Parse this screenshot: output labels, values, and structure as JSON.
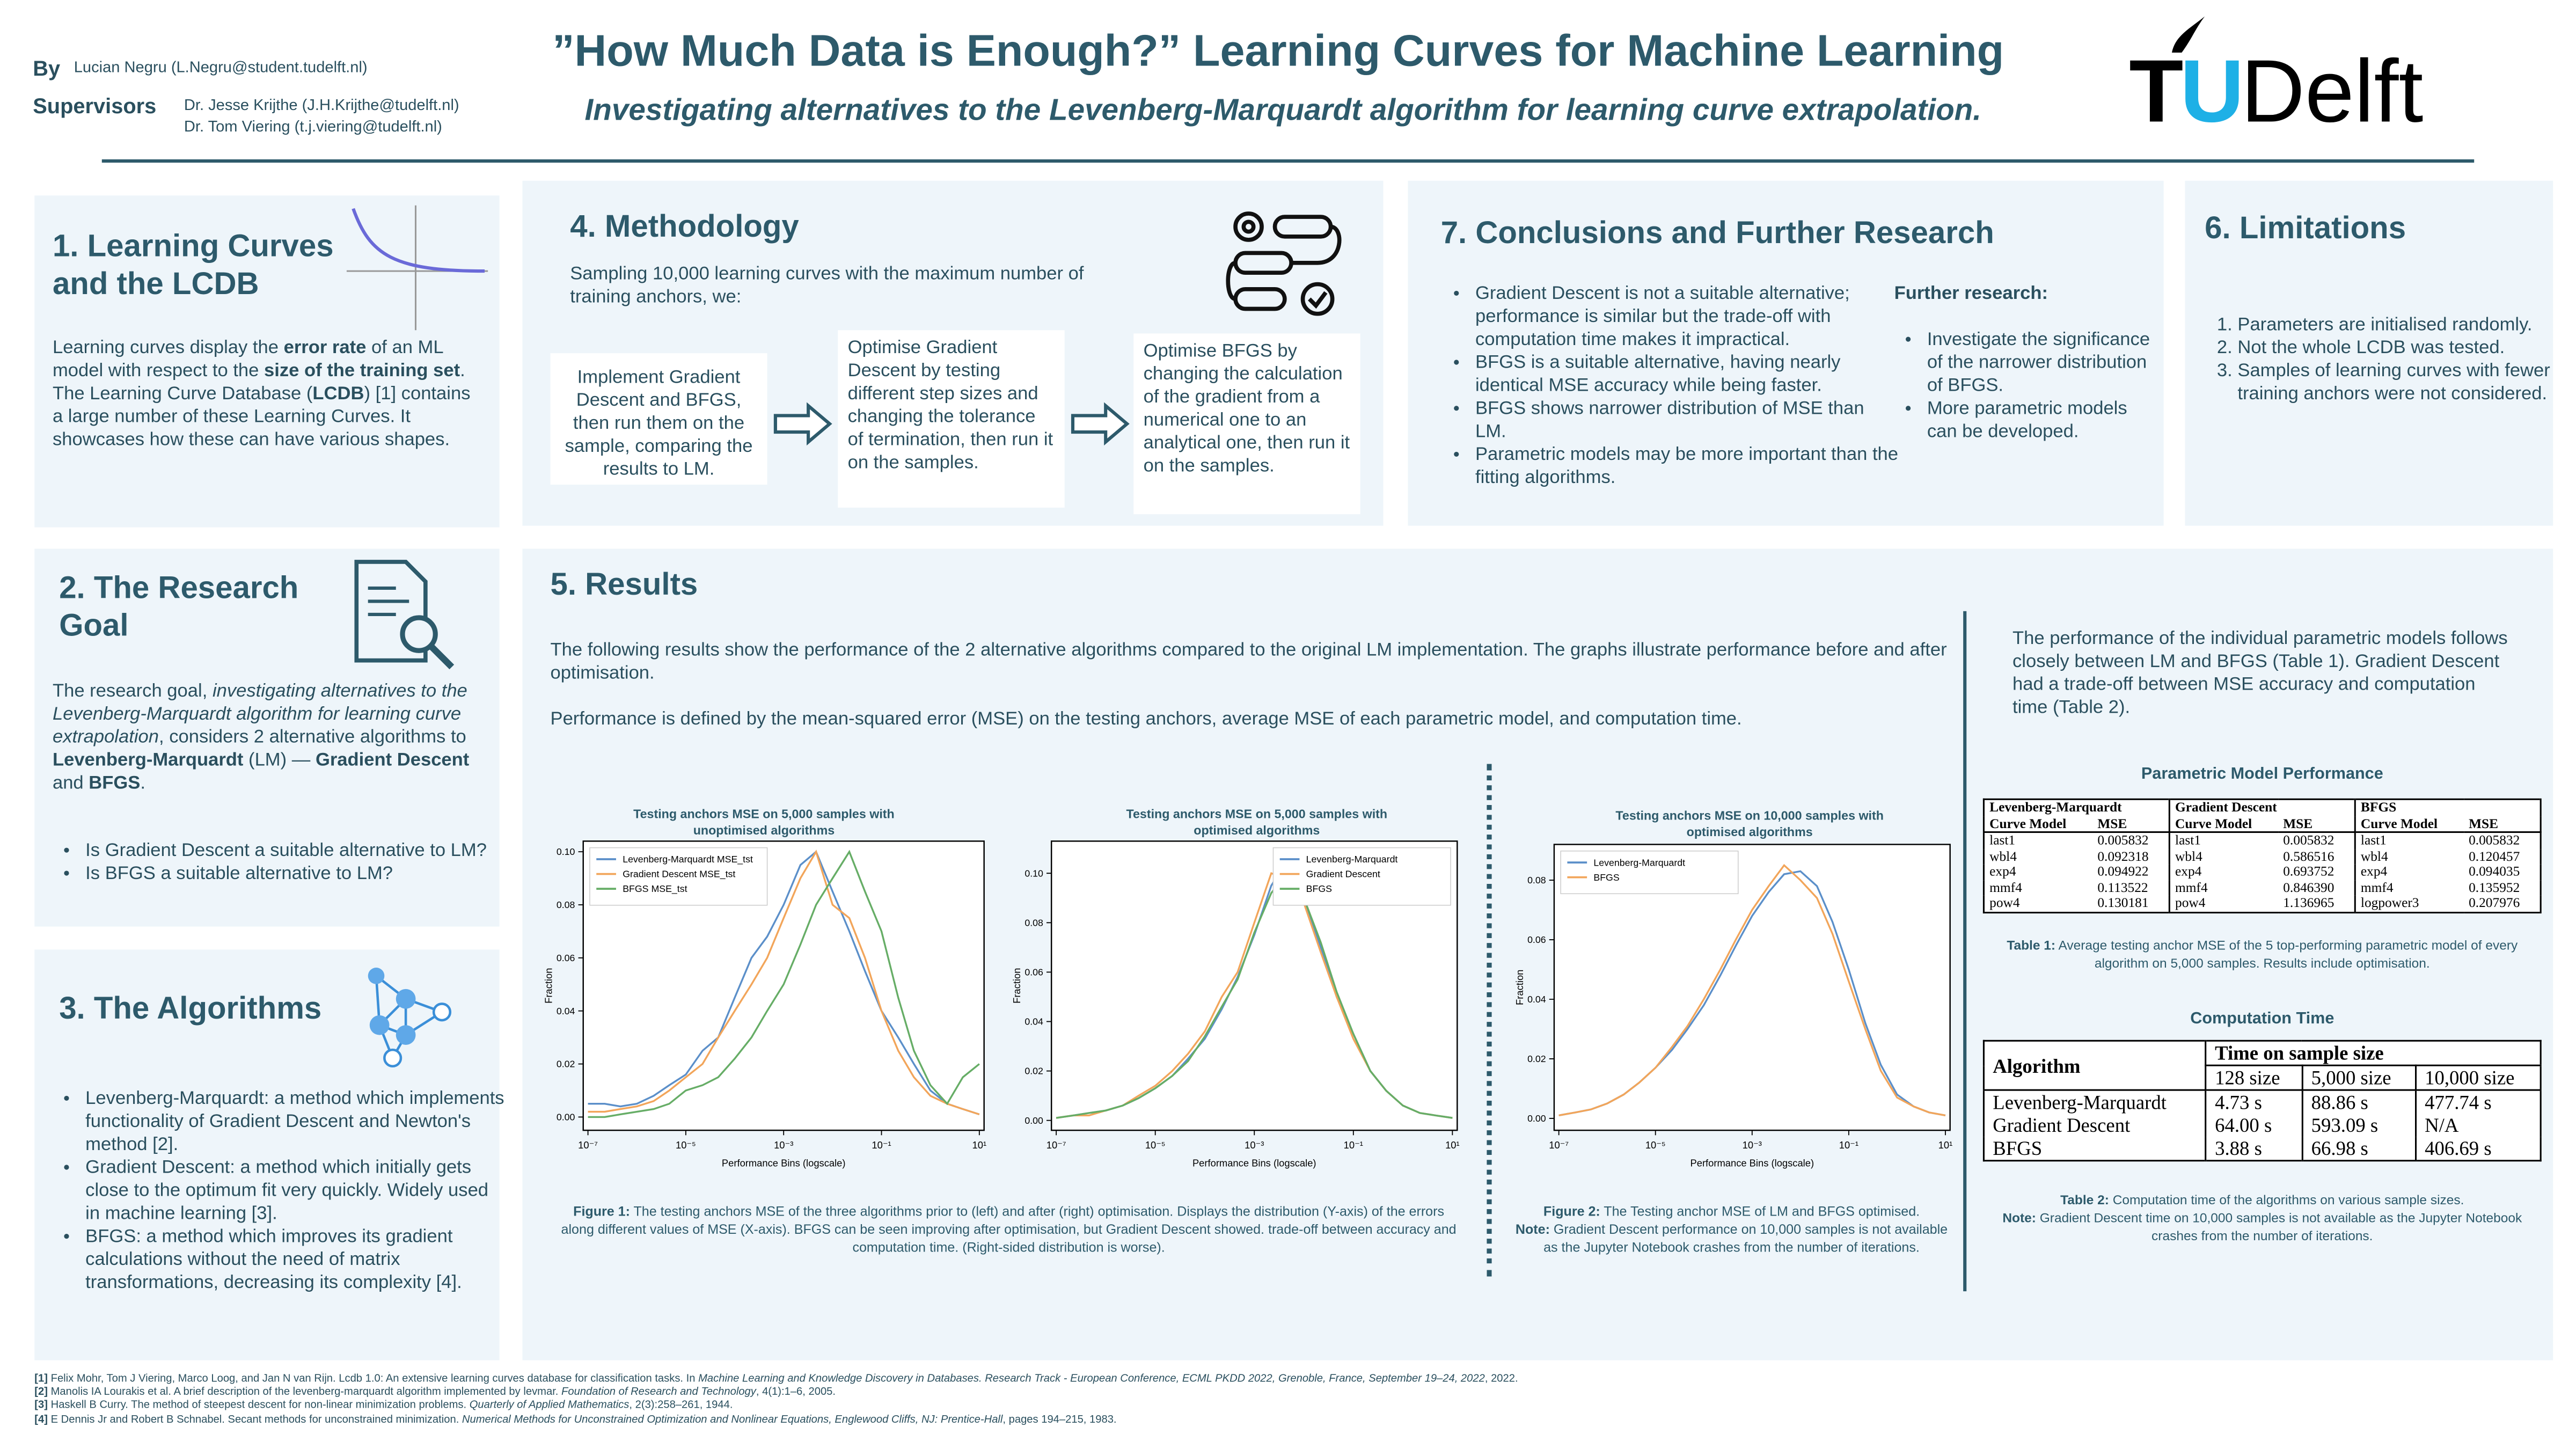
{
  "header": {
    "by_label": "By",
    "author": "Lucian Negru (L.Negru@student.tudelft.nl)",
    "supervisors_label": "Supervisors",
    "supervisors": [
      "Dr. Jesse Krijthe (J.H.Krijthe@tudelft.nl)",
      "Dr. Tom Viering (t.j.viering@tudelft.nl)"
    ],
    "title": "”How Much Data is Enough?” Learning Curves for Machine Learning",
    "subtitle": "Investigating alternatives to the Levenberg-Marquardt algorithm for learning curve extrapolation.",
    "logo": {
      "t": "T",
      "u": "U",
      "delft": "Delft"
    }
  },
  "learning_curves": {
    "title": "1. Learning Curves and the LCDB",
    "body": [
      "Learning curves display the ",
      "error rate",
      " of an ML model with respect to the ",
      "size of the training set",
      ". The Learning Curve Database (",
      "LCDB",
      ") [1] contains a large number of these Learning Curves. It showcases how these can have various shapes."
    ]
  },
  "research_goal": {
    "title": "2. The Research Goal",
    "body": [
      "The research goal, ",
      "investigating alternatives to the Levenberg-Marquardt algorithm for learning curve extrapolation",
      ", considers 2 alternative algorithms to ",
      "Levenberg-Marquardt",
      " (LM) — ",
      "Gradient Descent",
      " and ",
      "BFGS",
      "."
    ],
    "bullets": [
      "Is Gradient Descent a suitable alternative to LM?",
      "Is BFGS a suitable alternative to LM?"
    ]
  },
  "algorithms": {
    "title": "3. The Algorithms",
    "bullets": [
      "Levenberg-Marquardt: a method which implements functionality of Gradient Descent and Newton's method [2].",
      "Gradient Descent: a method which initially gets close to the optimum fit very quickly. Widely used in machine learning [3].",
      "BFGS: a method which improves its gradient calculations without the need of matrix transformations, decreasing its complexity [4]."
    ]
  },
  "methodology": {
    "title": "4. Methodology",
    "intro": "Sampling 10,000 learning curves with the maximum number of training anchors, we:",
    "steps": [
      "Implement Gradient Descent and BFGS, then run them on the sample, comparing the results to LM.",
      "Optimise Gradient Descent by testing different step sizes and changing the tolerance of termination, then run it on the samples.",
      "Optimise BFGS by changing the calculation of the gradient from a numerical one to an analytical one, then run it on the samples."
    ]
  },
  "conclusions": {
    "title": "7. Conclusions and Further Research",
    "bullets": [
      "Gradient Descent is not a suitable alternative; performance is similar but the trade-off with computation time makes it impractical.",
      "BFGS is a suitable alternative, having nearly identical MSE accuracy while being faster.",
      "BFGS shows narrower distribution of MSE than LM.",
      "Parametric models may be more important than the fitting algorithms."
    ],
    "further_title": "Further research:",
    "further": [
      "Investigate the significance of the narrower distribution of BFGS.",
      "More parametric models can be developed."
    ]
  },
  "limitations": {
    "title": "6. Limitations",
    "items": [
      "Parameters are initialised randomly.",
      "Not the whole LCDB was tested.",
      "Samples of learning curves with fewer training anchors were not considered."
    ]
  },
  "results": {
    "title": "5. Results",
    "paragraphs": [
      "The following results show the performance of the 2 alternative algorithms compared to the original LM implementation. The graphs illustrate performance before and after optimisation.",
      "Performance is defined by the mean-squared error (MSE) on the testing anchors, average MSE of each parametric model, and computation time."
    ],
    "side_text": "The performance of the individual parametric models follows closely between LM and BFGS (Table 1). Gradient Descent had a trade-off between MSE accuracy and computation time (Table 2).",
    "figure1": [
      "Figure 1:",
      " The testing anchors MSE of the three algorithms prior to (left) and after (right) optimisation. Displays the distribution (Y-axis) of the errors along different values of MSE (X-axis). BFGS can be seen improving after optimisation, but Gradient Descent showed. trade-off between accuracy and computation time. (Right-sided distribution is worse)."
    ],
    "figure2": [
      "Figure 2:",
      " The Testing anchor MSE of LM and BFGS optimised.",
      "Note:",
      " Gradient Descent performance on 10,000 samples is not available as the Jupyter Notebook crashes from the number of iterations."
    ],
    "table1": {
      "title": "Parametric Model Performance",
      "groups": [
        "Levenberg-Marquardt",
        "Gradient Descent",
        "BFGS"
      ],
      "col_headers": [
        "Curve Model",
        "MSE"
      ],
      "rows": [
        [
          "last1",
          "0.005832",
          "last1",
          "0.005832",
          "last1",
          "0.005832"
        ],
        [
          "wbl4",
          "0.092318",
          "wbl4",
          "0.586516",
          "wbl4",
          "0.120457"
        ],
        [
          "exp4",
          "0.094922",
          "exp4",
          "0.693752",
          "exp4",
          "0.094035"
        ],
        [
          "mmf4",
          "0.113522",
          "mmf4",
          "0.846390",
          "mmf4",
          "0.135952"
        ],
        [
          "pow4",
          "0.130181",
          "pow4",
          "1.136965",
          "logpower3",
          "0.207976"
        ]
      ],
      "caption": [
        "Table 1:",
        " Average testing anchor MSE of the 5 top-performing parametric model of every algorithm on 5,000 samples. Results include optimisation."
      ]
    },
    "table2": {
      "title": "Computation Time",
      "header": [
        "Algorithm",
        "Time on sample size"
      ],
      "sizes": [
        "128 size",
        "5,000 size",
        "10,000 size"
      ],
      "rows": [
        [
          "Levenberg-Marquardt",
          "4.73 s",
          "88.86 s",
          "477.74 s"
        ],
        [
          "Gradient Descent",
          "64.00 s",
          "593.09 s",
          "N/A"
        ],
        [
          "BFGS",
          "3.88 s",
          "66.98 s",
          "406.69 s"
        ]
      ],
      "caption": [
        "Table 2:",
        " Computation time of the algorithms on various sample sizes.",
        "Note:",
        " Gradient Descent time on 10,000 samples is not available as the Jupyter Notebook crashes from the number of iterations."
      ]
    }
  },
  "chart_data": [
    {
      "type": "line",
      "title": "Testing anchors MSE on 5,000 samples with unoptimised algorithms",
      "xlabel": "Performance Bins (logscale)",
      "ylabel": "Fraction",
      "log_x": true,
      "legend": "upper left",
      "x": [
        1e-07,
        2.2e-07,
        4.6e-07,
        1e-06,
        2.2e-06,
        4.6e-06,
        1e-05,
        2.2e-05,
        4.6e-05,
        0.0001,
        0.00022,
        0.00046,
        0.001,
        0.0022,
        0.0046,
        0.01,
        0.022,
        0.046,
        0.1,
        0.22,
        0.46,
        1,
        2.2,
        4.6,
        10
      ],
      "series": [
        {
          "name": "Levenberg-Marquardt MSE_tst",
          "color": "#5b8fc9",
          "values": [
            0.005,
            0.005,
            0.004,
            0.005,
            0.008,
            0.012,
            0.016,
            0.025,
            0.03,
            0.045,
            0.06,
            0.068,
            0.08,
            0.095,
            0.1,
            0.085,
            0.07,
            0.055,
            0.04,
            0.03,
            0.02,
            0.01,
            0.005,
            0.003,
            0.001
          ]
        },
        {
          "name": "Gradient Descent MSE_tst",
          "color": "#f2a55a",
          "values": [
            0.002,
            0.002,
            0.003,
            0.004,
            0.006,
            0.01,
            0.015,
            0.02,
            0.03,
            0.04,
            0.05,
            0.06,
            0.075,
            0.09,
            0.1,
            0.08,
            0.075,
            0.06,
            0.04,
            0.025,
            0.015,
            0.008,
            0.005,
            0.003,
            0.001
          ]
        },
        {
          "name": "BFGS MSE_tst",
          "color": "#66ad66",
          "values": [
            0.0,
            0.0,
            0.001,
            0.002,
            0.003,
            0.005,
            0.01,
            0.012,
            0.015,
            0.022,
            0.03,
            0.04,
            0.05,
            0.065,
            0.08,
            0.09,
            0.1,
            0.085,
            0.07,
            0.045,
            0.025,
            0.012,
            0.005,
            0.015,
            0.02
          ]
        }
      ],
      "xlim": [
        8e-08,
        12.5
      ],
      "ylim": [
        -0.005,
        0.104
      ],
      "xticks": [
        {
          "value": 1e-07,
          "label": "10⁻⁷"
        },
        {
          "value": 1e-05,
          "label": "10⁻⁵"
        },
        {
          "value": 0.001,
          "label": "10⁻³"
        },
        {
          "value": 0.1,
          "label": "10⁻¹"
        },
        {
          "value": 10,
          "label": "10¹"
        }
      ],
      "yticks": [
        {
          "value": 0,
          "label": "0.00"
        },
        0.02,
        0.04,
        0.06,
        0.08,
        {
          "value": 0.1,
          "label": "0.10"
        }
      ]
    },
    {
      "type": "line",
      "title": "Testing anchors MSE on 5,000 samples with optimised algorithms",
      "xlabel": "Performance Bins (logscale)",
      "ylabel": "Fraction",
      "log_x": true,
      "legend": "upper right",
      "x": [
        1e-07,
        2.2e-07,
        4.6e-07,
        1e-06,
        2.2e-06,
        4.6e-06,
        1e-05,
        2.2e-05,
        4.6e-05,
        0.0001,
        0.00022,
        0.00046,
        0.001,
        0.0022,
        0.0046,
        0.01,
        0.022,
        0.046,
        0.1,
        0.22,
        0.46,
        1,
        2.2,
        4.6,
        10
      ],
      "series": [
        {
          "name": "Levenberg-Marquardt",
          "color": "#5b8fc9",
          "values": [
            0.001,
            0.002,
            0.003,
            0.004,
            0.006,
            0.009,
            0.013,
            0.018,
            0.025,
            0.033,
            0.045,
            0.058,
            0.075,
            0.095,
            0.105,
            0.09,
            0.07,
            0.05,
            0.035,
            0.02,
            0.012,
            0.006,
            0.003,
            0.002,
            0.001
          ]
        },
        {
          "name": "Gradient Descent",
          "color": "#f2a55a",
          "values": [
            0.001,
            0.002,
            0.002,
            0.004,
            0.006,
            0.01,
            0.014,
            0.02,
            0.027,
            0.036,
            0.05,
            0.06,
            0.08,
            0.1,
            0.098,
            0.088,
            0.068,
            0.05,
            0.033,
            0.02,
            0.012,
            0.006,
            0.003,
            0.002,
            0.001
          ]
        },
        {
          "name": "BFGS",
          "color": "#66ad66",
          "values": [
            0.001,
            0.002,
            0.003,
            0.004,
            0.006,
            0.009,
            0.013,
            0.018,
            0.024,
            0.034,
            0.046,
            0.057,
            0.076,
            0.092,
            0.1,
            0.09,
            0.072,
            0.052,
            0.035,
            0.02,
            0.012,
            0.006,
            0.003,
            0.002,
            0.001
          ]
        }
      ],
      "xlim": [
        8e-08,
        12.5
      ],
      "ylim": [
        -0.004,
        0.113
      ],
      "xticks": [
        {
          "value": 1e-07,
          "label": "10⁻⁷"
        },
        {
          "value": 1e-05,
          "label": "10⁻⁵"
        },
        {
          "value": 0.001,
          "label": "10⁻³"
        },
        {
          "value": 0.1,
          "label": "10⁻¹"
        },
        {
          "value": 10,
          "label": "10¹"
        }
      ],
      "yticks": [
        {
          "value": 0,
          "label": "0.00"
        },
        0.02,
        0.04,
        0.06,
        0.08,
        {
          "value": 0.1,
          "label": "0.10"
        }
      ]
    },
    {
      "type": "line",
      "title": "Testing anchors MSE on 10,000 samples with optimised algorithms",
      "xlabel": "Performance Bins (logscale)",
      "ylabel": "Fraction",
      "log_x": true,
      "legend": "upper left",
      "x": [
        1e-07,
        2.2e-07,
        4.6e-07,
        1e-06,
        2.2e-06,
        4.6e-06,
        1e-05,
        2.2e-05,
        4.6e-05,
        0.0001,
        0.00022,
        0.00046,
        0.001,
        0.0022,
        0.0046,
        0.01,
        0.022,
        0.046,
        0.1,
        0.22,
        0.46,
        1,
        2.2,
        4.6,
        10
      ],
      "series": [
        {
          "name": "Levenberg-Marquardt",
          "color": "#5b8fc9",
          "values": [
            0.001,
            0.002,
            0.003,
            0.005,
            0.008,
            0.012,
            0.017,
            0.023,
            0.03,
            0.038,
            0.048,
            0.058,
            0.068,
            0.076,
            0.082,
            0.083,
            0.078,
            0.066,
            0.05,
            0.032,
            0.018,
            0.008,
            0.004,
            0.002,
            0.001
          ]
        },
        {
          "name": "BFGS",
          "color": "#f2a55a",
          "values": [
            0.001,
            0.002,
            0.003,
            0.005,
            0.008,
            0.012,
            0.017,
            0.024,
            0.031,
            0.04,
            0.05,
            0.06,
            0.07,
            0.078,
            0.085,
            0.08,
            0.074,
            0.062,
            0.046,
            0.03,
            0.016,
            0.007,
            0.004,
            0.002,
            0.001
          ]
        }
      ],
      "xlim": [
        8e-08,
        12.5
      ],
      "ylim": [
        -0.004,
        0.092
      ],
      "xticks": [
        {
          "value": 1e-07,
          "label": "10⁻⁷"
        },
        {
          "value": 1e-05,
          "label": "10⁻⁵"
        },
        {
          "value": 0.001,
          "label": "10⁻³"
        },
        {
          "value": 0.1,
          "label": "10⁻¹"
        },
        {
          "value": 10,
          "label": "10¹"
        }
      ],
      "yticks": [
        {
          "value": 0,
          "label": "0.00"
        },
        0.02,
        0.04,
        0.06,
        0.08
      ]
    }
  ],
  "references": [
    {
      "num": "[1]",
      "text": [
        "Felix Mohr, Tom J Viering, Marco Loog, and Jan N van Rijn. Lcdb 1.0: An extensive learning curves database for classification tasks. In ",
        "Machine Learning and Knowledge Discovery in Databases. Research Track - European Conference, ECML PKDD 2022, Grenoble, France, September 19–24, 2022",
        ", 2022."
      ]
    },
    {
      "num": "[2]",
      "text": [
        "Manolis IA Lourakis et al. A brief description of the levenberg-marquardt algorithm implemented by levmar. ",
        "Foundation of Research and Technology",
        ", 4(1):1–6, 2005."
      ]
    },
    {
      "num": "[3]",
      "text": [
        "Haskell B Curry. The method of steepest descent for non-linear minimization problems. ",
        "Quarterly of Applied Mathematics",
        ", 2(3):258–261, 1944."
      ]
    },
    {
      "num": "[4]",
      "text": [
        "E Dennis Jr and Robert B Schnabel. Secant methods for unconstrained minimization. ",
        "Numerical Methods for Unconstrained Optimization and Nonlinear Equations, Englewood Cliffs, NJ: Prentice-Hall",
        ", pages 194–215, 1983."
      ]
    }
  ]
}
